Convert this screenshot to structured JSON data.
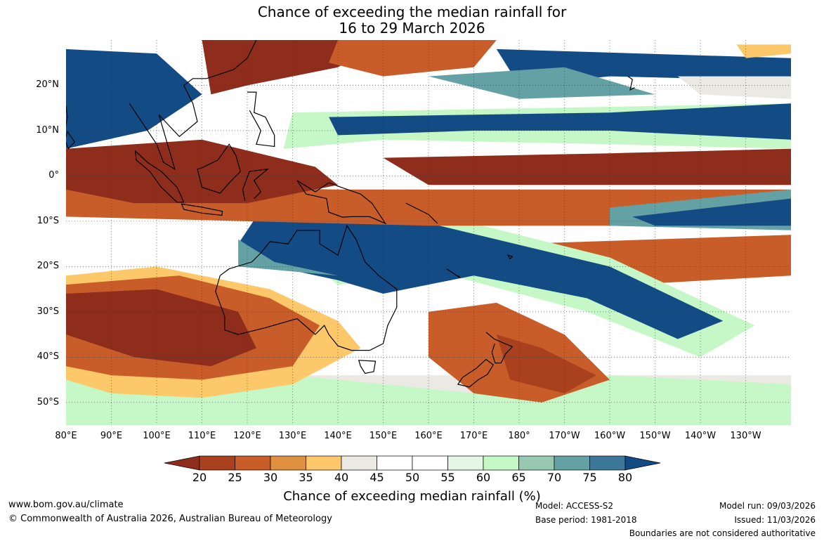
{
  "title": {
    "line1": "Chance of exceeding the median rainfall for",
    "line2": "16 to 29 March 2026"
  },
  "map": {
    "lat_labels": [
      "20°N",
      "10°N",
      "0°",
      "10°S",
      "20°S",
      "30°S",
      "40°S",
      "50°S"
    ],
    "lon_labels": [
      "80°E",
      "90°E",
      "100°E",
      "110°E",
      "120°E",
      "130°E",
      "140°E",
      "150°E",
      "160°E",
      "170°E",
      "180°",
      "170°W",
      "160°W",
      "150°W",
      "140°W",
      "130°W"
    ],
    "extent": {
      "lon_min": 80,
      "lon_max": 240,
      "lat_min": -55,
      "lat_max": 30
    }
  },
  "legend": {
    "label": "Chance of exceeding median rainfall (%)",
    "ticks": [
      "20",
      "25",
      "30",
      "35",
      "40",
      "45",
      "50",
      "55",
      "60",
      "65",
      "70",
      "75",
      "80"
    ],
    "colors": [
      "#8f2d1c",
      "#a9411f",
      "#c85d2a",
      "#e0913f",
      "#fcc86a",
      "#ebe9e3",
      "#ffffff",
      "#ffffff",
      "#e6f6e6",
      "#c6f7c6",
      "#98c8b2",
      "#64a1a4",
      "#3e7898",
      "#134b85"
    ]
  },
  "footer": {
    "website": "www.bom.gov.au/climate",
    "copyright": "© Commonwealth of Australia 2026, Australian Bureau of Meteorology",
    "model": "Model: ACCESS-S2",
    "base_period": "Base period: 1981-2018",
    "model_run": "Model run: 09/03/2026",
    "issued": "Issued: 11/03/2026",
    "disclaimer": "Boundaries are not considered authoritative"
  }
}
